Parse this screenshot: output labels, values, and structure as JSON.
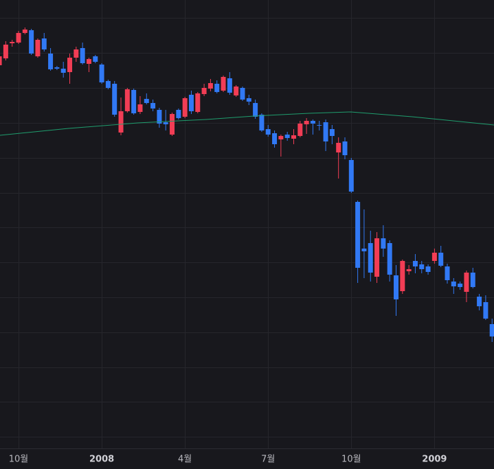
{
  "chart_data": {
    "type": "candlestick",
    "up_color": "#f23d55",
    "down_color": "#3179f5",
    "grid": true,
    "xlim": [
      0.1,
      77.3
    ],
    "ylim": [
      0,
      653
    ],
    "ygrid": [
      17,
      68,
      118,
      169,
      220,
      271,
      322,
      372,
      423,
      474,
      525,
      576,
      627
    ],
    "xticks": [
      {
        "value": 3,
        "label": "10월"
      },
      {
        "value": 16,
        "label": "2008",
        "bold": true
      },
      {
        "value": 29,
        "label": "4월"
      },
      {
        "value": 42,
        "label": "7월"
      },
      {
        "value": 55,
        "label": "10월"
      },
      {
        "value": 68,
        "label": "2009",
        "bold": true
      }
    ],
    "x": [
      0,
      1,
      2,
      3,
      4,
      5,
      6,
      7,
      8,
      9,
      10,
      11,
      12,
      13,
      14,
      15,
      16,
      17,
      18,
      19,
      20,
      21,
      22,
      23,
      24,
      25,
      26,
      27,
      28,
      29,
      30,
      31,
      32,
      33,
      34,
      35,
      36,
      37,
      38,
      39,
      40,
      41,
      42,
      43,
      44,
      45,
      46,
      47,
      48,
      49,
      50,
      51,
      52,
      53,
      54,
      55,
      56,
      57,
      58,
      59,
      60,
      61,
      62,
      63,
      64,
      65,
      66,
      67,
      68,
      69,
      70,
      71,
      72,
      73,
      74,
      75,
      76,
      77
    ],
    "open": [
      558,
      568,
      590,
      591,
      605,
      609,
      571,
      597,
      575,
      555,
      553,
      548,
      569,
      583,
      560,
      571,
      559,
      535,
      531,
      460,
      491,
      522,
      490,
      509,
      503,
      493,
      475,
      457,
      493,
      483,
      515,
      490,
      516,
      524,
      531,
      521,
      539,
      514,
      525,
      510,
      503,
      486,
      465,
      459,
      450,
      457,
      451,
      455,
      472,
      477,
      471,
      475,
      465,
      431,
      447,
      420,
      359,
      291,
      299,
      250,
      306,
      299,
      252,
      229,
      258,
      273,
      268,
      265,
      273,
      285,
      265,
      243,
      240,
      228,
      256,
      221,
      213,
      181
    ],
    "high": [
      575,
      593,
      595,
      608,
      613,
      611,
      597,
      605,
      583,
      557,
      563,
      575,
      585,
      591,
      569,
      573,
      561,
      537,
      535,
      511,
      525,
      524,
      513,
      517,
      508,
      496,
      493,
      489,
      495,
      512,
      521,
      519,
      531,
      538,
      536,
      543,
      548,
      529,
      527,
      515,
      508,
      488,
      471,
      463,
      457,
      461,
      465,
      477,
      481,
      479,
      477,
      479,
      471,
      453,
      453,
      423,
      361,
      348,
      317,
      315,
      325,
      303,
      267,
      275,
      267,
      283,
      273,
      268,
      291,
      295,
      269,
      248,
      243,
      259,
      263,
      225,
      223,
      189
    ],
    "low": [
      556,
      565,
      585,
      589,
      603,
      573,
      569,
      578,
      550,
      551,
      540,
      531,
      563,
      559,
      548,
      561,
      531,
      523,
      483,
      456,
      489,
      486,
      487,
      501,
      491,
      467,
      463,
      455,
      479,
      481,
      487,
      488,
      513,
      520,
      517,
      519,
      515,
      512,
      506,
      500,
      480,
      461,
      454,
      438,
      425,
      448,
      443,
      453,
      458,
      457,
      463,
      433,
      443,
      393,
      421,
      372,
      241,
      248,
      243,
      241,
      279,
      243,
      193,
      225,
      253,
      255,
      255,
      253,
      269,
      264,
      240,
      225,
      231,
      213,
      233,
      201,
      187,
      155
    ],
    "close": [
      571,
      588,
      592,
      605,
      610,
      575,
      595,
      581,
      552,
      553,
      547,
      569,
      581,
      561,
      567,
      563,
      533,
      525,
      486,
      491,
      523,
      488,
      501,
      503,
      495,
      473,
      472,
      487,
      481,
      510,
      491,
      517,
      525,
      532,
      519,
      541,
      518,
      527,
      508,
      505,
      483,
      463,
      457,
      443,
      455,
      452,
      456,
      473,
      477,
      473,
      470,
      447,
      455,
      445,
      427,
      374,
      263,
      287,
      256,
      306,
      291,
      253,
      217,
      273,
      261,
      265,
      261,
      257,
      285,
      266,
      245,
      236,
      235,
      256,
      235,
      207,
      189,
      163
    ],
    "line": {
      "color": "#1f9e6e",
      "x": [
        0.1,
        10.8,
        21.6,
        32.3,
        39.8,
        48.4,
        54.9,
        64.5,
        77.3
      ],
      "values": [
        456,
        466,
        474,
        479,
        484,
        488,
        490,
        483,
        471
      ]
    }
  }
}
